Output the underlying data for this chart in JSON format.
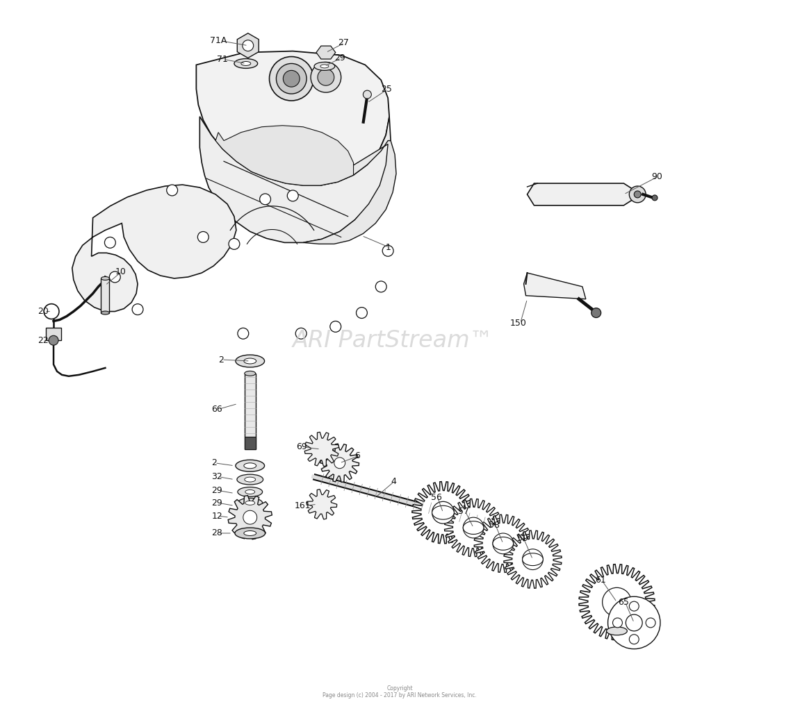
{
  "background_color": "#ffffff",
  "watermark_text": "ARI PartStream™",
  "watermark_color": "#cccccc",
  "copyright_text": "Copyright\nPage design (c) 2004 - 2017 by ARI Network Services, Inc."
}
